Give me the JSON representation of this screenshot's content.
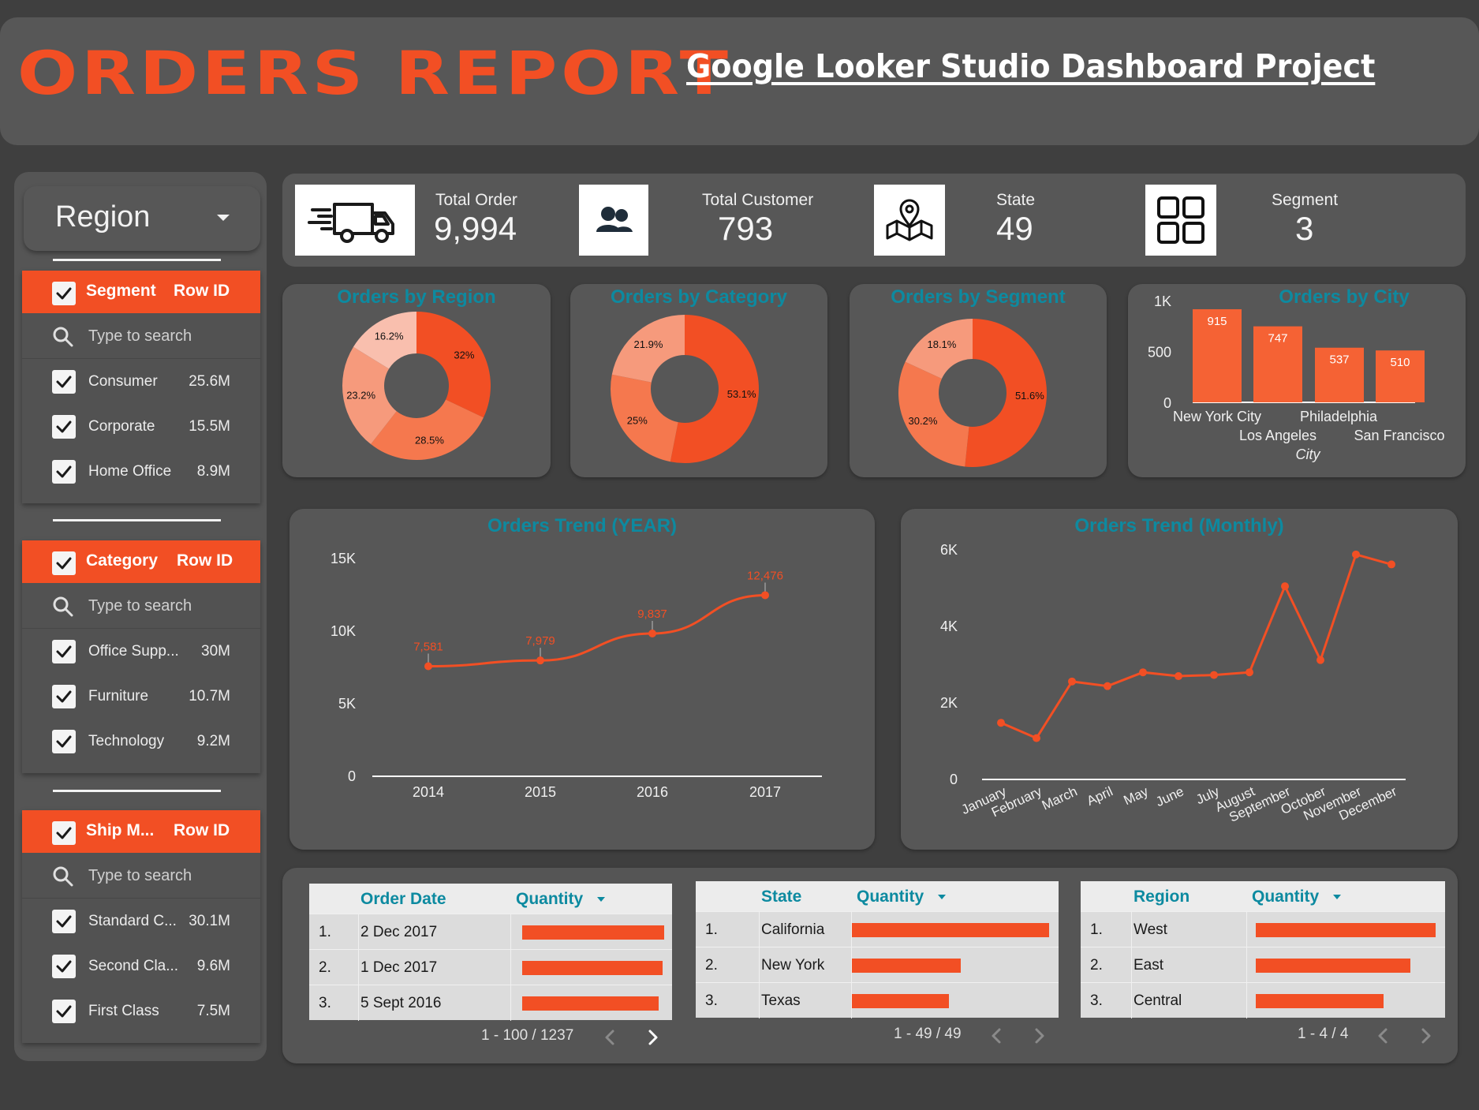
{
  "header": {
    "title": "ORDERS REPORT",
    "subtitle": "Google Looker Studio Dashboard Project"
  },
  "sidebar": {
    "region_label": "Region",
    "filters": [
      {
        "title": "Segment",
        "metric": "Row ID",
        "search_placeholder": "Type to search",
        "items": [
          {
            "label": "Consumer",
            "value": "25.6M"
          },
          {
            "label": "Corporate",
            "value": "15.5M"
          },
          {
            "label": "Home Office",
            "value": "8.9M"
          }
        ]
      },
      {
        "title": "Category",
        "metric": "Row ID",
        "search_placeholder": "Type to search",
        "items": [
          {
            "label": "Office Supp...",
            "value": "30M"
          },
          {
            "label": "Furniture",
            "value": "10.7M"
          },
          {
            "label": "Technology",
            "value": "9.2M"
          }
        ]
      },
      {
        "title": "Ship M...",
        "metric": "Row ID",
        "search_placeholder": "Type to search",
        "items": [
          {
            "label": "Standard C...",
            "value": "30.1M"
          },
          {
            "label": "Second Cla...",
            "value": "9.6M"
          },
          {
            "label": "First Class",
            "value": "7.5M"
          }
        ]
      }
    ]
  },
  "kpis": [
    {
      "label": "Total Order",
      "value": "9,994",
      "icon": "delivery-truck-icon"
    },
    {
      "label": "Total Customer",
      "value": "793",
      "icon": "users-icon"
    },
    {
      "label": "State",
      "value": "49",
      "icon": "map-pin-icon"
    },
    {
      "label": "Segment",
      "value": "3",
      "icon": "grid-icon"
    }
  ],
  "colors": {
    "accent": "#f24f24",
    "title_teal": "#0d8aa0",
    "pie_slices": [
      "#f24f24",
      "#f5784e",
      "#f69a7c",
      "#f9bfae"
    ]
  },
  "chart_data": [
    {
      "type": "pie",
      "title": "Orders by Region",
      "slices": [
        32,
        28.5,
        23.2,
        16.2
      ],
      "slice_labels": [
        "32%",
        "28.5%",
        "23.2%",
        "16.2%"
      ],
      "donut": true
    },
    {
      "type": "pie",
      "title": "Orders by Category",
      "slices": [
        53.1,
        25,
        21.9
      ],
      "slice_labels": [
        "53.1%",
        "25%",
        "21.9%"
      ],
      "donut": true
    },
    {
      "type": "pie",
      "title": "Orders by Segment",
      "slices": [
        51.6,
        30.2,
        18.1
      ],
      "slice_labels": [
        "51.6%",
        "30.2%",
        "18.1%"
      ],
      "donut": true
    },
    {
      "type": "bar",
      "title": "Orders by City",
      "categories": [
        "New York City",
        "Los Angeles",
        "Philadelphia",
        "San Francisco"
      ],
      "values": [
        915,
        747,
        537,
        510
      ],
      "value_labels": [
        "915",
        "747",
        "537",
        "510"
      ],
      "xlabel": "City",
      "ylim": [
        0,
        1000
      ],
      "yticks": [
        "0",
        "500",
        "1K"
      ],
      "ytick_values": [
        0,
        500,
        1000
      ]
    },
    {
      "type": "line",
      "title": "Orders Trend (YEAR)",
      "x": [
        "2014",
        "2015",
        "2016",
        "2017"
      ],
      "values": [
        7581,
        7979,
        9837,
        12476
      ],
      "value_labels": [
        "7,581",
        "7,979",
        "9,837",
        "12,476"
      ],
      "ylim": [
        0,
        15000
      ],
      "yticks": [
        "0",
        "5K",
        "10K",
        "15K"
      ],
      "ytick_values": [
        0,
        5000,
        10000,
        15000
      ]
    },
    {
      "type": "line",
      "title": "Orders Trend (Monthly)",
      "x": [
        "January",
        "February",
        "March",
        "April",
        "May",
        "June",
        "July",
        "August",
        "September",
        "October",
        "November",
        "December"
      ],
      "values": [
        1480,
        1080,
        2560,
        2440,
        2800,
        2700,
        2730,
        2800,
        5050,
        3120,
        5880,
        5620
      ],
      "ylim": [
        0,
        6000
      ],
      "yticks": [
        "0",
        "2K",
        "4K",
        "6K"
      ],
      "ytick_values": [
        0,
        2000,
        4000,
        6000
      ]
    }
  ],
  "tables": [
    {
      "headers": [
        "Order Date",
        "Quantity"
      ],
      "rows": [
        {
          "rank": "1.",
          "label": "2 Dec 2017",
          "quantity": 1.0
        },
        {
          "rank": "2.",
          "label": "1 Dec 2017",
          "quantity": 0.99
        },
        {
          "rank": "3.",
          "label": "5 Sept 2016",
          "quantity": 0.96
        }
      ],
      "pagination": "1 - 100 / 1237"
    },
    {
      "headers": [
        "State",
        "Quantity"
      ],
      "rows": [
        {
          "rank": "1.",
          "label": "California",
          "quantity": 1.0
        },
        {
          "rank": "2.",
          "label": "New York",
          "quantity": 0.55
        },
        {
          "rank": "3.",
          "label": "Texas",
          "quantity": 0.49
        }
      ],
      "pagination": "1 - 49 / 49"
    },
    {
      "headers": [
        "Region",
        "Quantity"
      ],
      "rows": [
        {
          "rank": "1.",
          "label": "West",
          "quantity": 1.0
        },
        {
          "rank": "2.",
          "label": "East",
          "quantity": 0.86
        },
        {
          "rank": "3.",
          "label": "Central",
          "quantity": 0.71
        }
      ],
      "pagination": "1 - 4 / 4"
    }
  ]
}
